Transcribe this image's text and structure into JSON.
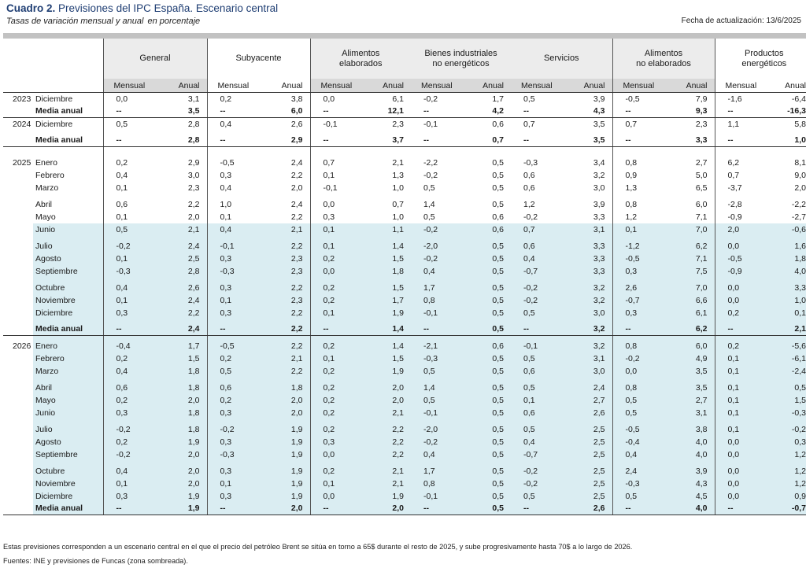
{
  "header": {
    "title_bold": "Cuadro 2.",
    "title_rest": "Previsiones del IPC España. Escenario central",
    "subtitle": "Tasas de variación mensual y anual",
    "subtitle_unit": "en porcentaje",
    "update_label": "Fecha de actualización: 13/6/2025"
  },
  "table": {
    "groups": [
      "General",
      "Subyacente",
      "Alimentos\nelaborados",
      "Bienes industriales\nno energéticos",
      "Servicios",
      "Alimentos\nno elaborados",
      "Productos\nenergéticos"
    ],
    "subheaders": {
      "monthly": "Mensual",
      "annual": "Anual"
    },
    "rows": [
      {
        "year": "2023",
        "label": "Diciembre",
        "bold": false,
        "shade": false,
        "sep": false,
        "space_before": 0,
        "values": [
          "0,0",
          "3,1",
          "0,2",
          "3,8",
          "0,0",
          "6,1",
          "-0,2",
          "1,7",
          "0,5",
          "3,9",
          "-0,5",
          "7,9",
          "-1,6",
          "-6,4"
        ]
      },
      {
        "year": "",
        "label": "Media anual",
        "bold": true,
        "shade": false,
        "sep": true,
        "space_before": 0,
        "values": [
          "--",
          "3,5",
          "--",
          "6,0",
          "--",
          "12,1",
          "--",
          "4,2",
          "--",
          "4,3",
          "--",
          "9,3",
          "--",
          "-16,3"
        ]
      },
      {
        "year": "2024",
        "label": "Diciembre",
        "bold": false,
        "shade": false,
        "sep": false,
        "space_before": 0,
        "values": [
          "0,5",
          "2,8",
          "0,4",
          "2,6",
          "-0,1",
          "2,3",
          "-0,1",
          "0,6",
          "0,7",
          "3,5",
          "0,7",
          "2,3",
          "1,1",
          "5,8"
        ]
      },
      {
        "year": "",
        "label": "Media anual",
        "bold": true,
        "shade": false,
        "sep": true,
        "space_before": 1,
        "values": [
          "--",
          "2,8",
          "--",
          "2,9",
          "--",
          "3,7",
          "--",
          "0,7",
          "--",
          "3,5",
          "--",
          "3,3",
          "--",
          "1,0"
        ]
      },
      {
        "year": "2025",
        "label": "Enero",
        "bold": false,
        "shade": false,
        "sep": false,
        "space_before": 2,
        "values": [
          "0,2",
          "2,9",
          "-0,5",
          "2,4",
          "0,7",
          "2,1",
          "-2,2",
          "0,5",
          "-0,3",
          "3,4",
          "0,8",
          "2,7",
          "6,2",
          "8,1"
        ]
      },
      {
        "year": "",
        "label": "Febrero",
        "bold": false,
        "shade": false,
        "sep": false,
        "space_before": 0,
        "values": [
          "0,4",
          "3,0",
          "0,3",
          "2,2",
          "0,1",
          "1,3",
          "-0,2",
          "0,5",
          "0,6",
          "3,2",
          "0,9",
          "5,0",
          "0,7",
          "9,0"
        ]
      },
      {
        "year": "",
        "label": "Marzo",
        "bold": false,
        "shade": false,
        "sep": false,
        "space_before": 0,
        "values": [
          "0,1",
          "2,3",
          "0,4",
          "2,0",
          "-0,1",
          "1,0",
          "0,5",
          "0,5",
          "0,6",
          "3,0",
          "1,3",
          "6,5",
          "-3,7",
          "2,0"
        ]
      },
      {
        "year": "",
        "label": "Abril",
        "bold": false,
        "shade": false,
        "sep": false,
        "space_before": 1,
        "values": [
          "0,6",
          "2,2",
          "1,0",
          "2,4",
          "0,0",
          "0,7",
          "1,4",
          "0,5",
          "1,2",
          "3,9",
          "0,8",
          "6,0",
          "-2,8",
          "-2,2"
        ]
      },
      {
        "year": "",
        "label": "Mayo",
        "bold": false,
        "shade": false,
        "sep": false,
        "space_before": 0,
        "values": [
          "0,1",
          "2,0",
          "0,1",
          "2,2",
          "0,3",
          "1,0",
          "0,5",
          "0,6",
          "-0,2",
          "3,3",
          "1,2",
          "7,1",
          "-0,9",
          "-2,7"
        ]
      },
      {
        "year": "",
        "label": "Junio",
        "bold": false,
        "shade": true,
        "sep": false,
        "space_before": 0,
        "values": [
          "0,5",
          "2,1",
          "0,4",
          "2,1",
          "0,1",
          "1,1",
          "-0,2",
          "0,6",
          "0,7",
          "3,1",
          "0,1",
          "7,0",
          "2,0",
          "-0,6"
        ]
      },
      {
        "year": "",
        "label": "Julio",
        "bold": false,
        "shade": true,
        "sep": false,
        "space_before": 1,
        "values": [
          "-0,2",
          "2,4",
          "-0,1",
          "2,2",
          "0,1",
          "1,4",
          "-2,0",
          "0,5",
          "0,6",
          "3,3",
          "-1,2",
          "6,2",
          "0,0",
          "1,6"
        ]
      },
      {
        "year": "",
        "label": "Agosto",
        "bold": false,
        "shade": true,
        "sep": false,
        "space_before": 0,
        "values": [
          "0,1",
          "2,5",
          "0,3",
          "2,3",
          "0,2",
          "1,5",
          "-0,2",
          "0,5",
          "0,4",
          "3,3",
          "-0,5",
          "7,1",
          "-0,5",
          "1,8"
        ]
      },
      {
        "year": "",
        "label": "Septiembre",
        "bold": false,
        "shade": true,
        "sep": false,
        "space_before": 0,
        "values": [
          "-0,3",
          "2,8",
          "-0,3",
          "2,3",
          "0,0",
          "1,8",
          "0,4",
          "0,5",
          "-0,7",
          "3,3",
          "0,3",
          "7,5",
          "-0,9",
          "4,0"
        ]
      },
      {
        "year": "",
        "label": "Octubre",
        "bold": false,
        "shade": true,
        "sep": false,
        "space_before": 1,
        "values": [
          "0,4",
          "2,6",
          "0,3",
          "2,2",
          "0,2",
          "1,5",
          "1,7",
          "0,5",
          "-0,2",
          "3,2",
          "2,6",
          "7,0",
          "0,0",
          "3,3"
        ]
      },
      {
        "year": "",
        "label": "Noviembre",
        "bold": false,
        "shade": true,
        "sep": false,
        "space_before": 0,
        "values": [
          "0,1",
          "2,4",
          "0,1",
          "2,3",
          "0,2",
          "1,7",
          "0,8",
          "0,5",
          "-0,2",
          "3,2",
          "-0,7",
          "6,6",
          "0,0",
          "1,0"
        ]
      },
      {
        "year": "",
        "label": "Diciembre",
        "bold": false,
        "shade": true,
        "sep": false,
        "space_before": 0,
        "values": [
          "0,3",
          "2,2",
          "0,3",
          "2,2",
          "0,1",
          "1,9",
          "-0,1",
          "0,5",
          "0,5",
          "3,0",
          "0,3",
          "6,1",
          "0,2",
          "0,1"
        ]
      },
      {
        "year": "",
        "label": "Media anual",
        "bold": true,
        "shade": true,
        "sep": true,
        "space_before": 1,
        "values": [
          "--",
          "2,4",
          "--",
          "2,2",
          "--",
          "1,4",
          "--",
          "0,5",
          "--",
          "3,2",
          "--",
          "6,2",
          "--",
          "2,1"
        ]
      },
      {
        "year": "2026",
        "label": "Enero",
        "bold": false,
        "shade": true,
        "sep": false,
        "space_before": 1,
        "values": [
          "-0,4",
          "1,7",
          "-0,5",
          "2,2",
          "0,2",
          "1,4",
          "-2,1",
          "0,6",
          "-0,1",
          "3,2",
          "0,8",
          "6,0",
          "0,2",
          "-5,6"
        ]
      },
      {
        "year": "",
        "label": "Febrero",
        "bold": false,
        "shade": true,
        "sep": false,
        "space_before": 0,
        "values": [
          "0,2",
          "1,5",
          "0,2",
          "2,1",
          "0,1",
          "1,5",
          "-0,3",
          "0,5",
          "0,5",
          "3,1",
          "-0,2",
          "4,9",
          "0,1",
          "-6,1"
        ]
      },
      {
        "year": "",
        "label": "Marzo",
        "bold": false,
        "shade": true,
        "sep": false,
        "space_before": 0,
        "values": [
          "0,4",
          "1,8",
          "0,5",
          "2,2",
          "0,2",
          "1,9",
          "0,5",
          "0,5",
          "0,6",
          "3,0",
          "0,0",
          "3,5",
          "0,1",
          "-2,4"
        ]
      },
      {
        "year": "",
        "label": "Abril",
        "bold": false,
        "shade": true,
        "sep": false,
        "space_before": 1,
        "values": [
          "0,6",
          "1,8",
          "0,6",
          "1,8",
          "0,2",
          "2,0",
          "1,4",
          "0,5",
          "0,5",
          "2,4",
          "0,8",
          "3,5",
          "0,1",
          "0,5"
        ]
      },
      {
        "year": "",
        "label": "Mayo",
        "bold": false,
        "shade": true,
        "sep": false,
        "space_before": 0,
        "values": [
          "0,2",
          "2,0",
          "0,2",
          "2,0",
          "0,2",
          "2,0",
          "0,5",
          "0,5",
          "0,1",
          "2,7",
          "0,5",
          "2,7",
          "0,1",
          "1,5"
        ]
      },
      {
        "year": "",
        "label": "Junio",
        "bold": false,
        "shade": true,
        "sep": false,
        "space_before": 0,
        "values": [
          "0,3",
          "1,8",
          "0,3",
          "2,0",
          "0,2",
          "2,1",
          "-0,1",
          "0,5",
          "0,6",
          "2,6",
          "0,5",
          "3,1",
          "0,1",
          "-0,3"
        ]
      },
      {
        "year": "",
        "label": "Julio",
        "bold": false,
        "shade": true,
        "sep": false,
        "space_before": 1,
        "values": [
          "-0,2",
          "1,8",
          "-0,2",
          "1,9",
          "0,2",
          "2,2",
          "-2,0",
          "0,5",
          "0,5",
          "2,5",
          "-0,5",
          "3,8",
          "0,1",
          "-0,2"
        ]
      },
      {
        "year": "",
        "label": "Agosto",
        "bold": false,
        "shade": true,
        "sep": false,
        "space_before": 0,
        "values": [
          "0,2",
          "1,9",
          "0,3",
          "1,9",
          "0,3",
          "2,2",
          "-0,2",
          "0,5",
          "0,4",
          "2,5",
          "-0,4",
          "4,0",
          "0,0",
          "0,3"
        ]
      },
      {
        "year": "",
        "label": "Septiembre",
        "bold": false,
        "shade": true,
        "sep": false,
        "space_before": 0,
        "values": [
          "-0,2",
          "2,0",
          "-0,3",
          "1,9",
          "0,0",
          "2,2",
          "0,4",
          "0,5",
          "-0,7",
          "2,5",
          "0,4",
          "4,0",
          "0,0",
          "1,2"
        ]
      },
      {
        "year": "",
        "label": "Octubre",
        "bold": false,
        "shade": true,
        "sep": false,
        "space_before": 1,
        "values": [
          "0,4",
          "2,0",
          "0,3",
          "1,9",
          "0,2",
          "2,1",
          "1,7",
          "0,5",
          "-0,2",
          "2,5",
          "2,4",
          "3,9",
          "0,0",
          "1,2"
        ]
      },
      {
        "year": "",
        "label": "Noviembre",
        "bold": false,
        "shade": true,
        "sep": false,
        "space_before": 0,
        "values": [
          "0,1",
          "2,0",
          "0,1",
          "1,9",
          "0,1",
          "2,1",
          "0,8",
          "0,5",
          "-0,2",
          "2,5",
          "-0,3",
          "4,3",
          "0,0",
          "1,2"
        ]
      },
      {
        "year": "",
        "label": "Diciembre",
        "bold": false,
        "shade": true,
        "sep": false,
        "space_before": 0,
        "values": [
          "0,3",
          "1,9",
          "0,3",
          "1,9",
          "0,0",
          "1,9",
          "-0,1",
          "0,5",
          "0,5",
          "2,5",
          "0,5",
          "4,5",
          "0,0",
          "0,9"
        ]
      },
      {
        "year": "",
        "label": "Media anual",
        "bold": true,
        "shade": true,
        "sep": true,
        "space_before": 0,
        "values": [
          "--",
          "1,9",
          "--",
          "2,0",
          "--",
          "2,0",
          "--",
          "0,5",
          "--",
          "2,6",
          "--",
          "4,0",
          "--",
          "-0,7"
        ]
      }
    ]
  },
  "footer": {
    "note": "Estas previsiones corresponden a un escenario central en el que el precio del petróleo Brent se sitúa en torno a 65$ durante el resto de 2025, y sube progresivamente hasta 70$ a lo largo de 2026.",
    "source": "Fuentes: INE y previsiones de Funcas (zona sombreada)."
  },
  "colors": {
    "title": "#1f3e73",
    "shade": "#daedf2",
    "group_header": "#ececec",
    "sub_header": "#d9d9d9",
    "top_bar": "#c2c2c2"
  }
}
